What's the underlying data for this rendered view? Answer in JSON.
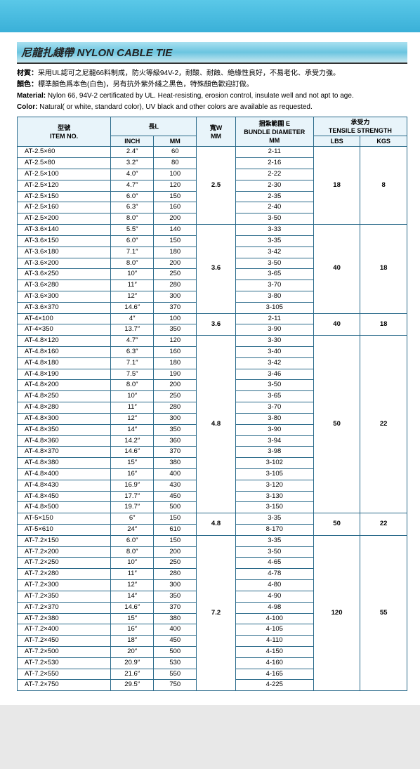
{
  "title_cn": "尼龍扎綫帶",
  "title_en": "NYLON CABLE TIE",
  "desc": {
    "cn1_label": "材質：",
    "cn1": "采用UL認可之尼龍66料制成，防火等級94V-2，耐酸、耐蝕、絶緣性良好，不易老化、承受力強。",
    "cn2_label": "顏色：",
    "cn2": "標準顏色爲本色(白色)，另有抗外紫外綫之黑色，特殊顏色歡迎訂做。",
    "en1_label": "Material:",
    "en1": " Nylon 66, 94V-2 certificated by UL. Heat-resisting, erosion control, insulate well and not apt to age.",
    "en2_label": "Color:",
    "en2": " Natural( or white, standard color), UV black and other colors are available as requested."
  },
  "headers": {
    "itemno_cn": "型號",
    "itemno_en": "ITEM NO.",
    "len_cn": "長L",
    "inch": "INCH",
    "mm": "MM",
    "width_cn": "寬W",
    "width_en": "MM",
    "bundle_cn": "捆紮範圍 E",
    "bundle_en": "BUNDLE DIAMETER",
    "bundle_mm": "MM",
    "tensile_cn": "承受力",
    "tensile_en": "TENSILE STRENGTH",
    "lbs": "LBS",
    "kgs": "KGS"
  },
  "groups": [
    {
      "width": "2.5",
      "lbs": "18",
      "kgs": "8",
      "rows": [
        {
          "no": "AT-2.5×60",
          "inch": "2.4″",
          "mm": "60",
          "bundle": "2-11"
        },
        {
          "no": "AT-2.5×80",
          "inch": "3.2″",
          "mm": "80",
          "bundle": "2-16"
        },
        {
          "no": "AT-2.5×100",
          "inch": "4.0″",
          "mm": "100",
          "bundle": "2-22"
        },
        {
          "no": "AT-2.5×120",
          "inch": "4.7″",
          "mm": "120",
          "bundle": "2-30"
        },
        {
          "no": "AT-2.5×150",
          "inch": "6.0″",
          "mm": "150",
          "bundle": "2-35"
        },
        {
          "no": "AT-2.5×160",
          "inch": "6.3″",
          "mm": "160",
          "bundle": "2-40"
        },
        {
          "no": "AT-2.5×200",
          "inch": "8.0″",
          "mm": "200",
          "bundle": "3-50"
        }
      ]
    },
    {
      "width": "3.6",
      "lbs": "40",
      "kgs": "18",
      "rows": [
        {
          "no": "AT-3.6×140",
          "inch": "5.5″",
          "mm": "140",
          "bundle": "3-33"
        },
        {
          "no": "AT-3.6×150",
          "inch": "6.0″",
          "mm": "150",
          "bundle": "3-35"
        },
        {
          "no": "AT-3.6×180",
          "inch": "7.1″",
          "mm": "180",
          "bundle": "3-42"
        },
        {
          "no": "AT-3.6×200",
          "inch": "8.0″",
          "mm": "200",
          "bundle": "3-50"
        },
        {
          "no": "AT-3.6×250",
          "inch": "10″",
          "mm": "250",
          "bundle": "3-65"
        },
        {
          "no": "AT-3.6×280",
          "inch": "11″",
          "mm": "280",
          "bundle": "3-70"
        },
        {
          "no": "AT-3.6×300",
          "inch": "12″",
          "mm": "300",
          "bundle": "3-80"
        },
        {
          "no": "AT-3.6×370",
          "inch": "14.6″",
          "mm": "370",
          "bundle": "3-105"
        }
      ]
    },
    {
      "width": "3.6",
      "lbs": "40",
      "kgs": "18",
      "rows": [
        {
          "no": "AT-4×100",
          "inch": "4″",
          "mm": "100",
          "bundle": "2-11"
        },
        {
          "no": "AT-4×350",
          "inch": "13.7″",
          "mm": "350",
          "bundle": "3-90"
        }
      ]
    },
    {
      "width": "4.8",
      "lbs": "50",
      "kgs": "22",
      "rows": [
        {
          "no": "AT-4.8×120",
          "inch": "4.7″",
          "mm": "120",
          "bundle": "3-30"
        },
        {
          "no": "AT-4.8×160",
          "inch": "6.3″",
          "mm": "160",
          "bundle": "3-40"
        },
        {
          "no": "AT-4.8×180",
          "inch": "7.1″",
          "mm": "180",
          "bundle": "3-42"
        },
        {
          "no": "AT-4.8×190",
          "inch": "7.5″",
          "mm": "190",
          "bundle": "3-46"
        },
        {
          "no": "AT-4.8×200",
          "inch": "8.0″",
          "mm": "200",
          "bundle": "3-50"
        },
        {
          "no": "AT-4.8×250",
          "inch": "10″",
          "mm": "250",
          "bundle": "3-65"
        },
        {
          "no": "AT-4.8×280",
          "inch": "11″",
          "mm": "280",
          "bundle": "3-70"
        },
        {
          "no": "AT-4.8×300",
          "inch": "12″",
          "mm": "300",
          "bundle": "3-80"
        },
        {
          "no": "AT-4.8×350",
          "inch": "14″",
          "mm": "350",
          "bundle": "3-90"
        },
        {
          "no": "AT-4.8×360",
          "inch": "14.2″",
          "mm": "360",
          "bundle": "3-94"
        },
        {
          "no": "AT-4.8×370",
          "inch": "14.6″",
          "mm": "370",
          "bundle": "3-98"
        },
        {
          "no": "AT-4.8×380",
          "inch": "15″",
          "mm": "380",
          "bundle": "3-102"
        },
        {
          "no": "AT-4.8×400",
          "inch": "16″",
          "mm": "400",
          "bundle": "3-105"
        },
        {
          "no": "AT-4.8×430",
          "inch": "16.9″",
          "mm": "430",
          "bundle": "3-120"
        },
        {
          "no": "AT-4.8×450",
          "inch": "17.7″",
          "mm": "450",
          "bundle": "3-130"
        },
        {
          "no": "AT-4.8×500",
          "inch": "19.7″",
          "mm": "500",
          "bundle": "3-150"
        }
      ]
    },
    {
      "width": "4.8",
      "lbs": "50",
      "kgs": "22",
      "rows": [
        {
          "no": "AT-5×150",
          "inch": "6″",
          "mm": "150",
          "bundle": "3-35"
        },
        {
          "no": "AT-5×610",
          "inch": "24″",
          "mm": "610",
          "bundle": "8-170"
        }
      ]
    },
    {
      "width": "7.2",
      "lbs": "120",
      "kgs": "55",
      "rows": [
        {
          "no": "AT-7.2×150",
          "inch": "6.0″",
          "mm": "150",
          "bundle": "3-35"
        },
        {
          "no": "AT-7.2×200",
          "inch": "8.0″",
          "mm": "200",
          "bundle": "3-50"
        },
        {
          "no": "AT-7.2×250",
          "inch": "10″",
          "mm": "250",
          "bundle": "4-65"
        },
        {
          "no": "AT-7.2×280",
          "inch": "11″",
          "mm": "280",
          "bundle": "4-78"
        },
        {
          "no": "AT-7.2×300",
          "inch": "12″",
          "mm": "300",
          "bundle": "4-80"
        },
        {
          "no": "AT-7.2×350",
          "inch": "14″",
          "mm": "350",
          "bundle": "4-90"
        },
        {
          "no": "AT-7.2×370",
          "inch": "14.6″",
          "mm": "370",
          "bundle": "4-98"
        },
        {
          "no": "AT-7.2×380",
          "inch": "15″",
          "mm": "380",
          "bundle": "4-100"
        },
        {
          "no": "AT-7.2×400",
          "inch": "16″",
          "mm": "400",
          "bundle": "4-105"
        },
        {
          "no": "AT-7.2×450",
          "inch": "18″",
          "mm": "450",
          "bundle": "4-110"
        },
        {
          "no": "AT-7.2×500",
          "inch": "20″",
          "mm": "500",
          "bundle": "4-150"
        },
        {
          "no": "AT-7.2×530",
          "inch": "20.9″",
          "mm": "530",
          "bundle": "4-160"
        },
        {
          "no": "AT-7.2×550",
          "inch": "21.6″",
          "mm": "550",
          "bundle": "4-165"
        },
        {
          "no": "AT-7.2×750",
          "inch": "29.5″",
          "mm": "750",
          "bundle": "4-225"
        }
      ]
    }
  ],
  "col_widths": {
    "itemno": "24%",
    "inch": "11%",
    "mm": "11%",
    "width": "10%",
    "bundle": "20%",
    "lbs": "12%",
    "kgs": "12%"
  }
}
